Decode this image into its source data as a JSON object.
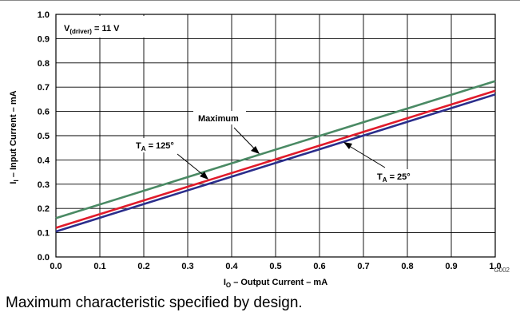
{
  "chart_data": {
    "type": "line",
    "xlabel": {
      "main": "I",
      "sub": "O",
      "rest": " – Output Current – mA"
    },
    "ylabel": {
      "main": "I",
      "sub": "I",
      "rest": " – Input Current – mA"
    },
    "xlim": [
      0.0,
      1.0
    ],
    "ylim": [
      0.0,
      1.0
    ],
    "x_ticks": [
      "0.0",
      "0.1",
      "0.2",
      "0.3",
      "0.4",
      "0.5",
      "0.6",
      "0.7",
      "0.8",
      "0.9",
      "1.0"
    ],
    "y_ticks": [
      "0.0",
      "0.1",
      "0.2",
      "0.3",
      "0.4",
      "0.5",
      "0.6",
      "0.7",
      "0.8",
      "0.9",
      "1.0"
    ],
    "grid": true,
    "series": [
      {
        "name": "Maximum",
        "color": "#4a8a64",
        "x": [
          0.0,
          1.0
        ],
        "y": [
          0.16,
          0.725
        ]
      },
      {
        "name": "TA = 125°",
        "color": "#e01b2b",
        "x": [
          0.0,
          1.0
        ],
        "y": [
          0.12,
          0.685
        ]
      },
      {
        "name": "TA = 25°",
        "color": "#2b2e8c",
        "x": [
          0.0,
          1.0
        ],
        "y": [
          0.105,
          0.67
        ]
      }
    ],
    "annotations": {
      "condition": {
        "main": "V",
        "sub": "(driver)",
        "rest": " = 11 V"
      },
      "maximum": "Maximum",
      "t125": {
        "main": "T",
        "sub": "A",
        "rest": " = 125°"
      },
      "t25": {
        "main": "T",
        "sub": "A",
        "rest": " = 25°"
      }
    },
    "figure_code": "G002"
  },
  "caption": "Maximum characteristic specified by design."
}
